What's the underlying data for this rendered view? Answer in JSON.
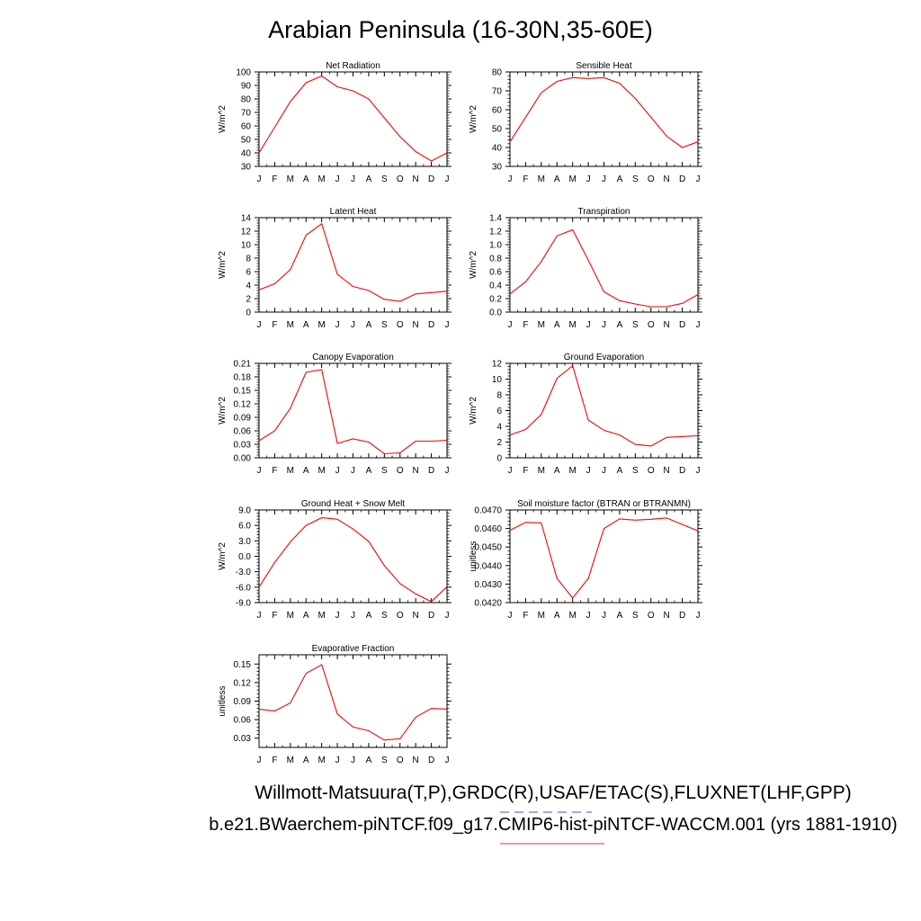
{
  "title": "Arabian Peninsula (16-30N,35-60E)",
  "footer": {
    "line1": "Willmott-Matsuura(T,P),GRDC(R),USAF/ETAC(S),FLUXNET(LHF,GPP)",
    "line2": "b.e21.BWaerchem-piNTCF.f09_g17.CMIP6-hist-piNTCF-WACCM.001 (yrs 1881-1910)",
    "line1_marker_color": "#7070e0",
    "line2_marker_color": "#e06060"
  },
  "chart_data": [
    {
      "type": "line",
      "title": "Net Radiation",
      "ylabel": "W/m^2",
      "categories": [
        "J",
        "F",
        "M",
        "A",
        "M",
        "J",
        "J",
        "A",
        "S",
        "O",
        "N",
        "D",
        "J"
      ],
      "series": [
        {
          "color": "#ff0000",
          "values": [
            40,
            59,
            78,
            92,
            97,
            89,
            86,
            80,
            66,
            52,
            41,
            34,
            40
          ]
        }
      ],
      "ylim": [
        30,
        100
      ],
      "yticks": [
        "30",
        "40",
        "50",
        "60",
        "70",
        "80",
        "90",
        "100"
      ]
    },
    {
      "type": "line",
      "title": "Sensible Heat",
      "ylabel": "W/m^2",
      "categories": [
        "J",
        "F",
        "M",
        "A",
        "M",
        "J",
        "J",
        "A",
        "S",
        "O",
        "N",
        "D",
        "J"
      ],
      "series": [
        {
          "color": "#ff0000",
          "values": [
            43,
            56,
            69,
            75,
            77,
            76.5,
            77,
            74,
            66,
            56,
            46,
            40,
            43
          ]
        }
      ],
      "ylim": [
        30,
        80
      ],
      "yticks": [
        "30",
        "40",
        "50",
        "60",
        "70",
        "80"
      ]
    },
    {
      "type": "line",
      "title": "Latent Heat",
      "ylabel": "W/m^2",
      "categories": [
        "J",
        "F",
        "M",
        "A",
        "M",
        "J",
        "J",
        "A",
        "S",
        "O",
        "N",
        "D",
        "J"
      ],
      "series": [
        {
          "color": "#ff0000",
          "values": [
            3.3,
            4.2,
            6.3,
            11.4,
            13.1,
            5.6,
            3.8,
            3.2,
            1.9,
            1.6,
            2.7,
            2.9,
            3.1
          ]
        }
      ],
      "ylim": [
        0,
        14
      ],
      "yticks": [
        "0",
        "2",
        "4",
        "6",
        "8",
        "10",
        "12",
        "14"
      ]
    },
    {
      "type": "line",
      "title": "Transpiration",
      "ylabel": "W/m^2",
      "categories": [
        "J",
        "F",
        "M",
        "A",
        "M",
        "J",
        "J",
        "A",
        "S",
        "O",
        "N",
        "D",
        "J"
      ],
      "series": [
        {
          "color": "#ff0000",
          "values": [
            0.27,
            0.45,
            0.75,
            1.13,
            1.22,
            0.77,
            0.3,
            0.17,
            0.12,
            0.08,
            0.08,
            0.13,
            0.26
          ]
        }
      ],
      "ylim": [
        0,
        1.4
      ],
      "yticks": [
        "0.0",
        "0.2",
        "0.4",
        "0.6",
        "0.8",
        "1.0",
        "1.2",
        "1.4"
      ]
    },
    {
      "type": "line",
      "title": "Canopy Evaporation",
      "ylabel": "W/m^2",
      "categories": [
        "J",
        "F",
        "M",
        "A",
        "M",
        "J",
        "J",
        "A",
        "S",
        "O",
        "N",
        "D",
        "J"
      ],
      "series": [
        {
          "color": "#ff0000",
          "values": [
            0.038,
            0.06,
            0.11,
            0.19,
            0.196,
            0.032,
            0.042,
            0.035,
            0.009,
            0.011,
            0.037,
            0.037,
            0.039
          ]
        }
      ],
      "ylim": [
        0,
        0.21
      ],
      "yticks": [
        "0.00",
        "0.03",
        "0.06",
        "0.09",
        "0.12",
        "0.15",
        "0.18",
        "0.21"
      ]
    },
    {
      "type": "line",
      "title": "Ground Evaporation",
      "ylabel": "W/m^2",
      "categories": [
        "J",
        "F",
        "M",
        "A",
        "M",
        "J",
        "J",
        "A",
        "S",
        "O",
        "N",
        "D",
        "J"
      ],
      "series": [
        {
          "color": "#ff0000",
          "values": [
            2.9,
            3.6,
            5.5,
            10.1,
            11.7,
            4.8,
            3.5,
            2.9,
            1.7,
            1.5,
            2.6,
            2.7,
            2.8
          ]
        }
      ],
      "ylim": [
        0,
        12
      ],
      "yticks": [
        "0",
        "2",
        "4",
        "6",
        "8",
        "10",
        "12"
      ]
    },
    {
      "type": "line",
      "title": "Ground Heat + Snow Melt",
      "ylabel": "W/m^2",
      "categories": [
        "J",
        "F",
        "M",
        "A",
        "M",
        "J",
        "J",
        "A",
        "S",
        "O",
        "N",
        "D",
        "J"
      ],
      "series": [
        {
          "color": "#ff0000",
          "values": [
            -6.0,
            -1.2,
            2.8,
            6.0,
            7.5,
            7.2,
            5.3,
            2.9,
            -1.8,
            -5.3,
            -7.3,
            -8.8,
            -5.9
          ]
        }
      ],
      "ylim": [
        -9,
        9
      ],
      "yticks": [
        "-9.0",
        "-6.0",
        "-3.0",
        "0.0",
        "3.0",
        "6.0",
        "9.0"
      ]
    },
    {
      "type": "line",
      "title": "Soil moisture factor (BTRAN or BTRANMN)",
      "ylabel": "unitless",
      "categories": [
        "J",
        "F",
        "M",
        "A",
        "M",
        "J",
        "J",
        "A",
        "S",
        "O",
        "N",
        "D",
        "J"
      ],
      "series": [
        {
          "color": "#ff0000",
          "values": [
            0.0459,
            0.04633,
            0.0463,
            0.0433,
            0.04225,
            0.0433,
            0.046,
            0.04652,
            0.04645,
            0.0465,
            0.04657,
            0.04622,
            0.04587
          ]
        }
      ],
      "ylim": [
        0.042,
        0.047
      ],
      "yticks": [
        "0.0420",
        "0.0430",
        "0.0440",
        "0.0450",
        "0.0460",
        "0.0470"
      ]
    },
    {
      "type": "line",
      "title": "Evaporative Fraction",
      "ylabel": "unitless",
      "categories": [
        "J",
        "F",
        "M",
        "A",
        "M",
        "J",
        "J",
        "A",
        "S",
        "O",
        "N",
        "D",
        "J"
      ],
      "series": [
        {
          "color": "#ff0000",
          "values": [
            0.077,
            0.074,
            0.087,
            0.135,
            0.149,
            0.069,
            0.048,
            0.042,
            0.027,
            0.029,
            0.064,
            0.078,
            0.077
          ]
        }
      ],
      "ylim": [
        0.015,
        0.165
      ],
      "yticks": [
        "0.03",
        "0.06",
        "0.09",
        "0.12",
        "0.15"
      ]
    }
  ]
}
